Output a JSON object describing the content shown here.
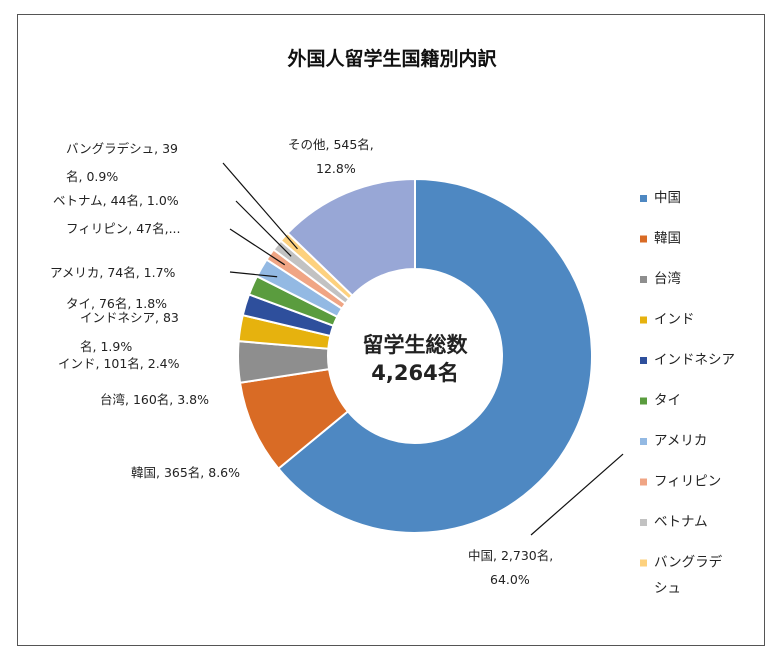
{
  "chart_data": {
    "type": "pie",
    "title": "外国人留学生国籍別内訳",
    "center_label": [
      "留学生総数",
      "4,264名"
    ],
    "slices": [
      {
        "name": "中国",
        "value": 2730,
        "percent": 64.0,
        "color": "#4e88c2",
        "label": [
          "中国, 2,730名,",
          "64.0%"
        ]
      },
      {
        "name": "韓国",
        "value": 365,
        "percent": 8.6,
        "color": "#d96b25",
        "label": [
          "韓国, 365名, 8.6%"
        ]
      },
      {
        "name": "台湾",
        "value": 160,
        "percent": 3.8,
        "color": "#8e8e8e",
        "label": [
          "台湾, 160名, 3.8%"
        ]
      },
      {
        "name": "インド",
        "value": 101,
        "percent": 2.4,
        "color": "#e6b20e",
        "label": [
          "インド, 101名, 2.4%"
        ]
      },
      {
        "name": "インドネシア",
        "value": 83,
        "percent": 1.9,
        "color": "#2e4f9c",
        "label": [
          "インドネシア, 83",
          "名, 1.9%"
        ]
      },
      {
        "name": "タイ",
        "value": 76,
        "percent": 1.8,
        "color": "#5a9c3e",
        "label": [
          "タイ, 76名, 1.8%"
        ]
      },
      {
        "name": "アメリカ",
        "value": 74,
        "percent": 1.7,
        "color": "#93b9e3",
        "label": [
          "アメリカ, 74名, 1.7%"
        ]
      },
      {
        "name": "フィリピン",
        "value": 47,
        "percent": 1.1,
        "color": "#f0a584",
        "label": [
          "フィリピン, 47名,..."
        ]
      },
      {
        "name": "ベトナム",
        "value": 44,
        "percent": 1.0,
        "color": "#c2c2c2",
        "label": [
          "ベトナム, 44名, 1.0%"
        ]
      },
      {
        "name": "バングラデシュ",
        "value": 39,
        "percent": 0.9,
        "color": "#fdd17e",
        "label": [
          "バングラデシュ, 39",
          "名, 0.9%"
        ]
      },
      {
        "name": "その他",
        "value": 545,
        "percent": 12.8,
        "color": "#98a7d6",
        "label": [
          "その他, 545名,",
          "12.8%"
        ]
      }
    ],
    "legend": {
      "position": "right",
      "entries": [
        {
          "label": [
            "中国"
          ],
          "color": "#4e88c2"
        },
        {
          "label": [
            "韓国"
          ],
          "color": "#d96b25"
        },
        {
          "label": [
            "台湾"
          ],
          "color": "#8e8e8e"
        },
        {
          "label": [
            "インド"
          ],
          "color": "#e6b20e"
        },
        {
          "label": [
            "インドネシア"
          ],
          "color": "#2e4f9c"
        },
        {
          "label": [
            "タイ"
          ],
          "color": "#5a9c3e"
        },
        {
          "label": [
            "アメリカ"
          ],
          "color": "#93b9e3"
        },
        {
          "label": [
            "フィリピン"
          ],
          "color": "#f0a584"
        },
        {
          "label": [
            "ベトナム"
          ],
          "color": "#c2c2c2"
        },
        {
          "label": [
            "バングラデ",
            "シュ"
          ],
          "color": "#fdd17e"
        }
      ]
    }
  }
}
